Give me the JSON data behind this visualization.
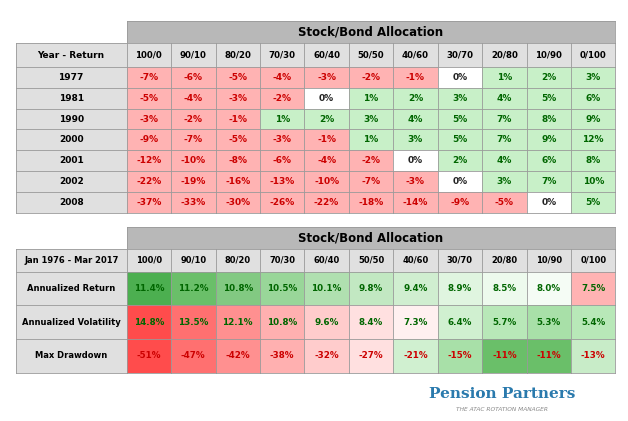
{
  "table1_title": "Stock/Bond Allocation",
  "table1_header_row": [
    "Year - Return",
    "100/0",
    "90/10",
    "80/20",
    "70/30",
    "60/40",
    "50/50",
    "40/60",
    "30/70",
    "20/80",
    "10/90",
    "0/100"
  ],
  "table1_rows": [
    [
      "1977",
      "-7%",
      "-6%",
      "-5%",
      "-4%",
      "-3%",
      "-2%",
      "-1%",
      "0%",
      "1%",
      "2%",
      "3%"
    ],
    [
      "1981",
      "-5%",
      "-4%",
      "-3%",
      "-2%",
      "0%",
      "1%",
      "2%",
      "3%",
      "4%",
      "5%",
      "6%"
    ],
    [
      "1990",
      "-3%",
      "-2%",
      "-1%",
      "1%",
      "2%",
      "3%",
      "4%",
      "5%",
      "7%",
      "8%",
      "9%"
    ],
    [
      "2000",
      "-9%",
      "-7%",
      "-5%",
      "-3%",
      "-1%",
      "1%",
      "3%",
      "5%",
      "7%",
      "9%",
      "12%"
    ],
    [
      "2001",
      "-12%",
      "-10%",
      "-8%",
      "-6%",
      "-4%",
      "-2%",
      "0%",
      "2%",
      "4%",
      "6%",
      "8%"
    ],
    [
      "2002",
      "-22%",
      "-19%",
      "-16%",
      "-13%",
      "-10%",
      "-7%",
      "-3%",
      "0%",
      "3%",
      "7%",
      "10%"
    ],
    [
      "2008",
      "-37%",
      "-33%",
      "-30%",
      "-26%",
      "-22%",
      "-18%",
      "-14%",
      "-9%",
      "-5%",
      "0%",
      "5%"
    ]
  ],
  "table1_colors": [
    [
      "#ffb3b3",
      "#ffb3b3",
      "#ffb3b3",
      "#ffb3b3",
      "#ffb3b3",
      "#ffb3b3",
      "#ffb3b3",
      "#ffffff",
      "#c8f0c8",
      "#c8f0c8",
      "#c8f0c8"
    ],
    [
      "#ffb3b3",
      "#ffb3b3",
      "#ffb3b3",
      "#ffb3b3",
      "#ffffff",
      "#c8f0c8",
      "#c8f0c8",
      "#c8f0c8",
      "#c8f0c8",
      "#c8f0c8",
      "#c8f0c8"
    ],
    [
      "#ffb3b3",
      "#ffb3b3",
      "#ffb3b3",
      "#c8f0c8",
      "#c8f0c8",
      "#c8f0c8",
      "#c8f0c8",
      "#c8f0c8",
      "#c8f0c8",
      "#c8f0c8",
      "#c8f0c8"
    ],
    [
      "#ffb3b3",
      "#ffb3b3",
      "#ffb3b3",
      "#ffb3b3",
      "#ffb3b3",
      "#c8f0c8",
      "#c8f0c8",
      "#c8f0c8",
      "#c8f0c8",
      "#c8f0c8",
      "#c8f0c8"
    ],
    [
      "#ffb3b3",
      "#ffb3b3",
      "#ffb3b3",
      "#ffb3b3",
      "#ffb3b3",
      "#ffb3b3",
      "#ffffff",
      "#c8f0c8",
      "#c8f0c8",
      "#c8f0c8",
      "#c8f0c8"
    ],
    [
      "#ffb3b3",
      "#ffb3b3",
      "#ffb3b3",
      "#ffb3b3",
      "#ffb3b3",
      "#ffb3b3",
      "#ffb3b3",
      "#ffffff",
      "#c8f0c8",
      "#c8f0c8",
      "#c8f0c8"
    ],
    [
      "#ffb3b3",
      "#ffb3b3",
      "#ffb3b3",
      "#ffb3b3",
      "#ffb3b3",
      "#ffb3b3",
      "#ffb3b3",
      "#ffb3b3",
      "#ffb3b3",
      "#ffffff",
      "#c8f0c8"
    ]
  ],
  "table2_title": "Stock/Bond Allocation",
  "table2_header_row": [
    "Jan 1976 - Mar 2017",
    "100/0",
    "90/10",
    "80/20",
    "70/30",
    "60/40",
    "50/50",
    "40/60",
    "30/70",
    "20/80",
    "10/90",
    "0/100"
  ],
  "table2_rows": [
    [
      "Annualized Return",
      "11.4%",
      "11.2%",
      "10.8%",
      "10.5%",
      "10.1%",
      "9.8%",
      "9.4%",
      "8.9%",
      "8.5%",
      "8.0%",
      "7.5%"
    ],
    [
      "Annualized Volatility",
      "14.8%",
      "13.5%",
      "12.1%",
      "10.8%",
      "9.6%",
      "8.4%",
      "7.3%",
      "6.4%",
      "5.7%",
      "5.3%",
      "5.4%"
    ],
    [
      "Max Drawdown",
      "-51%",
      "-47%",
      "-42%",
      "-38%",
      "-32%",
      "-27%",
      "-21%",
      "-15%",
      "-11%",
      "-11%",
      "-13%"
    ]
  ],
  "table2_colors": [
    [
      "#4caf50",
      "#6abf69",
      "#82c982",
      "#99d699",
      "#b0e0b0",
      "#c2e8c2",
      "#d0eed0",
      "#e0f5e0",
      "#edfaed",
      "#f5fcf5",
      "#ffb3b3"
    ],
    [
      "#ff4c4c",
      "#ff7070",
      "#ff9090",
      "#ffb0b0",
      "#ffcccc",
      "#ffe0e0",
      "#fff0f0",
      "#d0f0d0",
      "#b8e8b8",
      "#a8e0a8",
      "#b8e8b8"
    ],
    [
      "#ff4c4c",
      "#ff7070",
      "#ff9090",
      "#ffb0b0",
      "#ffcccc",
      "#ffe0e0",
      "#d0f0d0",
      "#a8e0a8",
      "#6abf69",
      "#6abf69",
      "#c8ecc8"
    ]
  ],
  "header_bg": "#b8b8b8",
  "label_col_bg": "#e0e0e0",
  "border_color": "#999999",
  "bg_color": "#ffffff",
  "text_color_red": "#cc0000",
  "text_color_green": "#006600",
  "text_color_dark": "#222222",
  "pension_text": "Pension Partners",
  "pension_sub": "THE ATAC ROTATION MANAGER"
}
